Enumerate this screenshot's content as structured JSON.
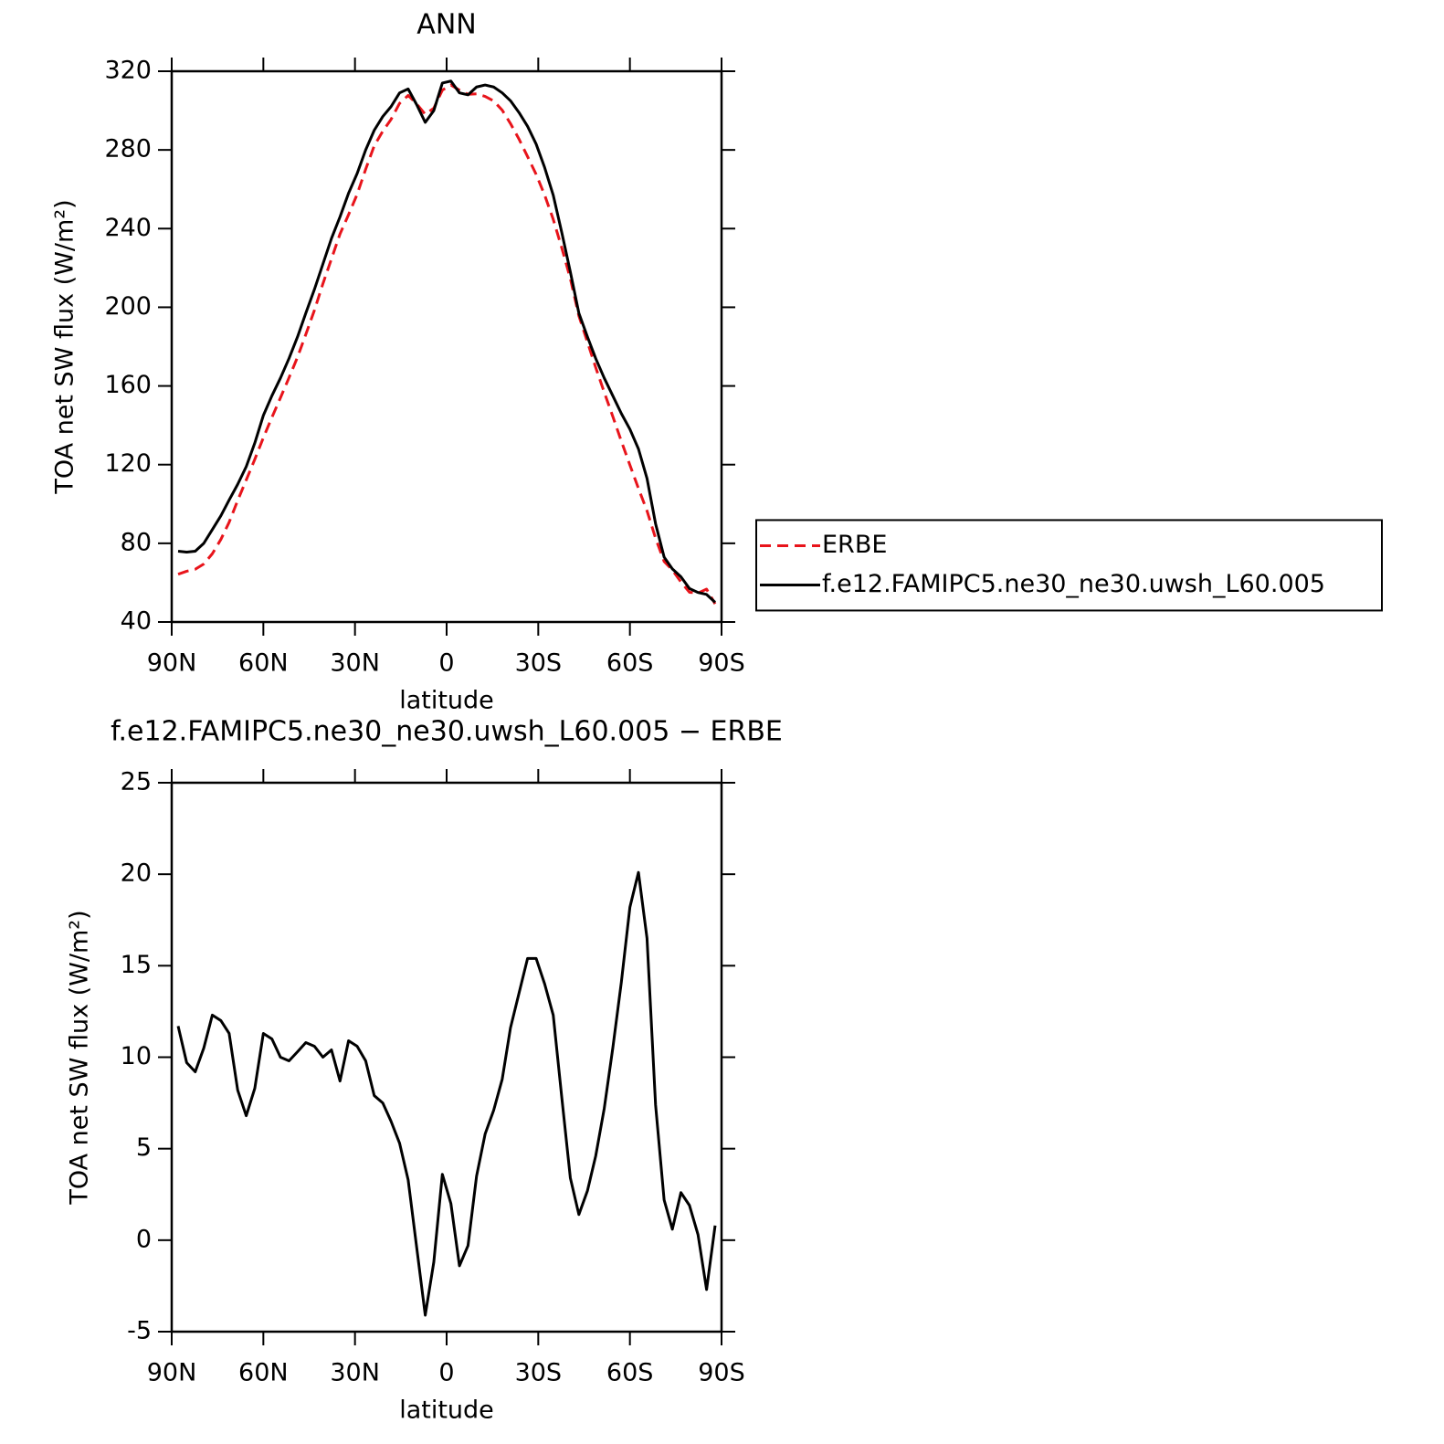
{
  "chart_data": [
    {
      "type": "line",
      "title": "ANN",
      "xlabel": "latitude",
      "ylabel": "TOA net SW flux (W/m²)",
      "x": [
        87.9,
        85.1,
        82.3,
        79.5,
        76.7,
        73.9,
        71.2,
        68.4,
        65.6,
        62.8,
        60,
        57.2,
        54.4,
        51.6,
        48.8,
        46.1,
        43.3,
        40.5,
        37.7,
        34.9,
        32.1,
        29.3,
        26.5,
        23.7,
        20.9,
        18.2,
        15.4,
        12.6,
        9.8,
        7,
        4.2,
        1.4,
        -1.4,
        -4.2,
        -7,
        -9.8,
        -12.6,
        -15.4,
        -18.2,
        -20.9,
        -23.7,
        -26.5,
        -29.3,
        -32.1,
        -34.9,
        -37.7,
        -40.5,
        -43.3,
        -46.1,
        -48.8,
        -51.6,
        -54.4,
        -57.2,
        -60,
        -62.8,
        -65.6,
        -68.4,
        -71.2,
        -73.9,
        -76.7,
        -79.5,
        -82.3,
        -85.1,
        -87.9
      ],
      "series": [
        {
          "name": "ERBE",
          "color": "#e8141b",
          "dash": "dashed",
          "values": [
            64.3,
            65.8,
            66.8,
            69.5,
            74.7,
            82,
            90.7,
            101.8,
            112.2,
            122.7,
            133.7,
            144,
            154,
            164.2,
            174.7,
            186.2,
            198.4,
            212,
            224.6,
            237.3,
            247.1,
            257.4,
            270.2,
            282.1,
            289.5,
            295.5,
            303.7,
            307.7,
            303.4,
            298.1,
            301.2,
            310.4,
            313,
            310.4,
            308.3,
            308.5,
            307.2,
            304.9,
            300.2,
            293.4,
            285.5,
            276.6,
            267.6,
            257,
            244.7,
            230.2,
            214.6,
            195.6,
            182.3,
            169.4,
            156.8,
            144.5,
            131.9,
            119.8,
            107.9,
            96.5,
            82.6,
            70.8,
            66.4,
            60.4,
            55.1,
            54.7,
            56.7,
            49.2
          ]
        },
        {
          "name": "f.e12.FAMIPC5.ne30_ne30.uwsh_L60.005",
          "color": "#000000",
          "dash": "solid",
          "values": [
            76,
            75.5,
            76,
            80,
            87,
            94,
            102,
            110,
            119,
            131,
            145,
            155,
            164,
            174,
            185,
            197,
            209,
            222,
            235,
            246,
            258,
            268,
            280,
            290,
            297,
            302,
            309,
            311,
            303,
            294,
            300,
            314,
            315,
            309,
            308,
            312,
            313,
            312,
            309,
            305,
            299,
            292,
            283,
            271,
            257,
            238,
            218,
            197,
            185,
            174,
            164,
            155,
            146,
            138,
            128,
            113,
            90,
            73,
            67,
            63,
            57,
            55,
            54,
            50
          ]
        }
      ],
      "xlim": [
        90,
        -90
      ],
      "xticks": [
        {
          "value": 90,
          "label": "90N"
        },
        {
          "value": 60,
          "label": "60N"
        },
        {
          "value": 30,
          "label": "30N"
        },
        0,
        {
          "value": -30,
          "label": "30S"
        },
        {
          "value": -60,
          "label": "60S"
        },
        {
          "value": -90,
          "label": "90S"
        }
      ],
      "ylim": [
        40,
        320
      ],
      "yticks": [
        40,
        80,
        120,
        160,
        200,
        240,
        280,
        320
      ],
      "legend": "right"
    },
    {
      "type": "line",
      "title": "f.e12.FAMIPC5.ne30_ne30.uwsh_L60.005 − ERBE",
      "xlabel": "latitude",
      "ylabel": "TOA net SW flux (W/m²)",
      "x": [
        87.9,
        85.1,
        82.3,
        79.5,
        76.7,
        73.9,
        71.2,
        68.4,
        65.6,
        62.8,
        60,
        57.2,
        54.4,
        51.6,
        48.8,
        46.1,
        43.3,
        40.5,
        37.7,
        34.9,
        32.1,
        29.3,
        26.5,
        23.7,
        20.9,
        18.2,
        15.4,
        12.6,
        9.8,
        7,
        4.2,
        1.4,
        -1.4,
        -4.2,
        -7,
        -9.8,
        -12.6,
        -15.4,
        -18.2,
        -20.9,
        -23.7,
        -26.5,
        -29.3,
        -32.1,
        -34.9,
        -37.7,
        -40.5,
        -43.3,
        -46.1,
        -48.8,
        -51.6,
        -54.4,
        -57.2,
        -60,
        -62.8,
        -65.6,
        -68.4,
        -71.2,
        -73.9,
        -76.7,
        -79.5,
        -82.3,
        -85.1,
        -87.9
      ],
      "color": "#000000",
      "values": [
        11.7,
        9.7,
        9.2,
        10.5,
        12.3,
        12,
        11.3,
        8.2,
        6.8,
        8.3,
        11.3,
        11,
        10,
        9.8,
        10.3,
        10.8,
        10.6,
        10,
        10.4,
        8.7,
        10.9,
        10.6,
        9.8,
        7.9,
        7.5,
        6.5,
        5.3,
        3.3,
        -0.4,
        -4.1,
        -1.2,
        3.6,
        2,
        -1.4,
        -0.3,
        3.5,
        5.8,
        7.1,
        8.8,
        11.6,
        13.5,
        15.4,
        15.4,
        14,
        12.3,
        7.8,
        3.4,
        1.4,
        2.7,
        4.6,
        7.2,
        10.5,
        14.1,
        18.2,
        20.1,
        16.5,
        7.4,
        2.2,
        0.6,
        2.6,
        1.9,
        0.3,
        -2.7,
        0.8
      ],
      "xlim": [
        90,
        -90
      ],
      "xticks": [
        {
          "value": 90,
          "label": "90N"
        },
        {
          "value": 60,
          "label": "60N"
        },
        {
          "value": 30,
          "label": "30N"
        },
        0,
        {
          "value": -30,
          "label": "30S"
        },
        {
          "value": -60,
          "label": "60S"
        },
        {
          "value": -90,
          "label": "90S"
        }
      ],
      "ylim": [
        -5,
        25
      ],
      "yticks": [
        -5,
        0,
        5,
        10,
        15,
        20,
        25
      ]
    }
  ]
}
